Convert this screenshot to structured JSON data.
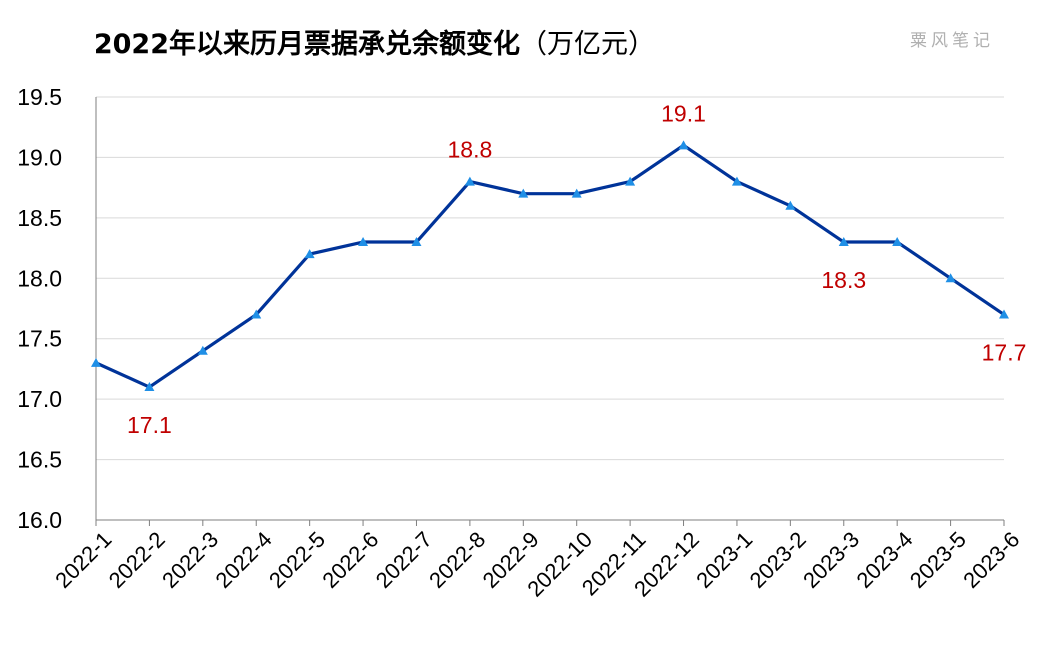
{
  "title_main": "2022年以来历月票据承兑余额变化",
  "title_unit": "（万亿元）",
  "watermark": "粟风笔记",
  "colors": {
    "line": "#003399",
    "marker": "#1f8fe6",
    "label": "#c00000",
    "grid": "#d9d9d9",
    "axis": "#7f7f7f"
  },
  "chart_data": {
    "type": "line",
    "title": "2022年以来历月票据承兑余额变化（万亿元）",
    "xlabel": "",
    "ylabel": "",
    "ylim": [
      16.0,
      19.5
    ],
    "yticks": [
      "16.0",
      "16.5",
      "17.0",
      "17.5",
      "18.0",
      "18.5",
      "19.0",
      "19.5"
    ],
    "categories": [
      "2022-1",
      "2022-2",
      "2022-3",
      "2022-4",
      "2022-5",
      "2022-6",
      "2022-7",
      "2022-8",
      "2022-9",
      "2022-10",
      "2022-11",
      "2022-12",
      "2023-1",
      "2023-2",
      "2023-3",
      "2023-4",
      "2023-5",
      "2023-6"
    ],
    "series": [
      {
        "values": [
          17.3,
          17.1,
          17.4,
          17.7,
          18.2,
          18.3,
          18.3,
          18.8,
          18.7,
          18.7,
          18.8,
          19.1,
          18.8,
          18.6,
          18.3,
          18.3,
          18.0,
          17.7
        ]
      }
    ],
    "data_labels": [
      {
        "index": 1,
        "text": "17.1",
        "position": "below"
      },
      {
        "index": 7,
        "text": "18.8",
        "position": "above"
      },
      {
        "index": 11,
        "text": "19.1",
        "position": "above"
      },
      {
        "index": 14,
        "text": "18.3",
        "position": "below"
      },
      {
        "index": 17,
        "text": "17.7",
        "position": "below"
      }
    ],
    "grid": true,
    "legend": "none"
  }
}
